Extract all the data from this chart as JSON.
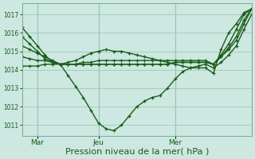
{
  "bg_color": "#cce8e0",
  "grid_color": "#a0c8bc",
  "line_color": "#1a5c1a",
  "xlabel": "Pression niveau de la mer( hPa )",
  "xlabel_fontsize": 8,
  "yticks": [
    1011,
    1012,
    1013,
    1014,
    1015,
    1016,
    1017
  ],
  "ylim": [
    1010.4,
    1017.6
  ],
  "xtick_labels": [
    "Mar",
    "Jeu",
    "Mer"
  ],
  "xtick_positions": [
    2,
    10,
    20
  ],
  "xlim": [
    0,
    30
  ],
  "series": [
    [
      1016.3,
      1015.8,
      1015.3,
      1014.8,
      1014.4,
      1014.3,
      1013.7,
      1013.1,
      1012.5,
      1011.8,
      1011.1,
      1010.8,
      1010.7,
      1011.0,
      1011.5,
      1012.0,
      1012.3,
      1012.5,
      1012.6,
      1013.0,
      1013.5,
      1013.9,
      1014.1,
      1014.1,
      1014.1,
      1013.8,
      1015.1,
      1016.0,
      1016.5,
      1017.1,
      1017.3
    ],
    [
      1015.8,
      1015.4,
      1015.0,
      1014.6,
      1014.4,
      1014.3,
      1014.3,
      1014.3,
      1014.3,
      1014.3,
      1014.3,
      1014.3,
      1014.3,
      1014.3,
      1014.3,
      1014.3,
      1014.3,
      1014.3,
      1014.3,
      1014.3,
      1014.4,
      1014.4,
      1014.4,
      1014.4,
      1014.4,
      1014.3,
      1014.8,
      1015.4,
      1016.2,
      1017.0,
      1017.3
    ],
    [
      1015.3,
      1015.1,
      1014.9,
      1014.7,
      1014.5,
      1014.3,
      1014.3,
      1014.3,
      1014.3,
      1014.3,
      1014.3,
      1014.3,
      1014.3,
      1014.3,
      1014.3,
      1014.3,
      1014.3,
      1014.3,
      1014.3,
      1014.3,
      1014.4,
      1014.4,
      1014.4,
      1014.4,
      1014.4,
      1014.3,
      1014.7,
      1015.2,
      1015.8,
      1016.7,
      1017.3
    ],
    [
      1014.7,
      1014.6,
      1014.5,
      1014.5,
      1014.4,
      1014.3,
      1014.3,
      1014.3,
      1014.4,
      1014.4,
      1014.5,
      1014.5,
      1014.5,
      1014.5,
      1014.5,
      1014.5,
      1014.5,
      1014.5,
      1014.5,
      1014.5,
      1014.5,
      1014.5,
      1014.5,
      1014.5,
      1014.5,
      1014.3,
      1014.7,
      1015.1,
      1015.6,
      1016.5,
      1017.3
    ],
    [
      1014.2,
      1014.2,
      1014.2,
      1014.3,
      1014.3,
      1014.3,
      1014.4,
      1014.5,
      1014.7,
      1014.9,
      1015.0,
      1015.1,
      1015.0,
      1015.0,
      1014.9,
      1014.8,
      1014.7,
      1014.6,
      1014.5,
      1014.4,
      1014.3,
      1014.2,
      1014.1,
      1014.2,
      1014.3,
      1014.1,
      1014.4,
      1014.8,
      1015.3,
      1016.2,
      1017.0
    ]
  ],
  "marker": "+",
  "marker_size": 3,
  "line_width": 1.0
}
